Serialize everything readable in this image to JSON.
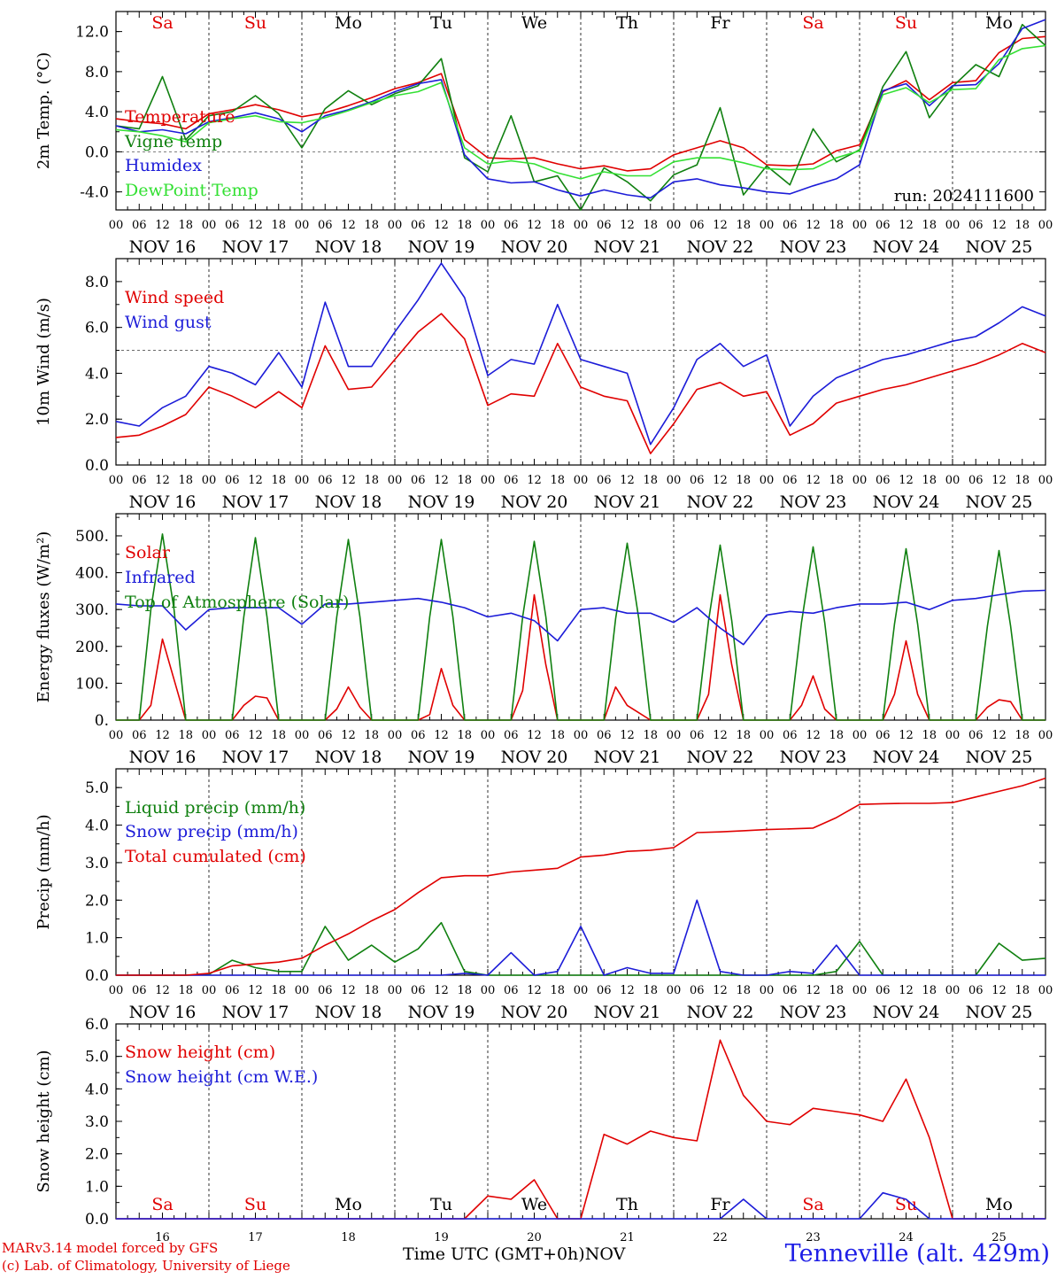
{
  "chart_data": [
    {
      "type": "line",
      "ylabel": "2m Temp. (°C)",
      "ylim": [
        -5.8,
        14.0
      ],
      "yticks": [
        -4.0,
        0.0,
        4.0,
        8.0,
        12.0
      ],
      "ytick_labels": [
        "-4.0",
        "0.0",
        "4.0",
        "8.0",
        "12.0"
      ],
      "reference_line": 0,
      "day_labels": [
        "Sa",
        "Su",
        "Mo",
        "Tu",
        "We",
        "Th",
        "Fr",
        "Sa",
        "Su",
        "Mo"
      ],
      "annotation": "run: 2024111600",
      "x_hours": [
        0,
        6,
        12,
        18,
        24,
        30,
        36,
        42,
        48,
        54,
        60,
        66,
        72,
        78,
        84,
        90,
        96,
        102,
        108,
        114,
        120,
        126,
        132,
        138,
        144,
        150,
        156,
        162,
        168,
        174,
        180,
        186,
        192,
        198,
        204,
        210,
        216,
        222,
        228,
        234,
        240
      ],
      "series": [
        {
          "name": "Temperature",
          "color": "#e00000",
          "values": [
            3.3,
            3.0,
            2.8,
            2.3,
            3.8,
            4.2,
            4.7,
            4.2,
            3.5,
            3.9,
            4.6,
            5.4,
            6.3,
            6.9,
            7.8,
            1.2,
            -0.6,
            -0.7,
            -0.6,
            -1.2,
            -1.7,
            -1.4,
            -1.9,
            -1.7,
            -0.3,
            0.4,
            1.1,
            0.4,
            -1.3,
            -1.4,
            -1.2,
            0.1,
            0.7,
            6.0,
            7.1,
            5.2,
            6.9,
            7.1,
            9.9,
            11.3,
            11.5
          ]
        },
        {
          "name": "Vigne temp",
          "color": "#108010",
          "values": [
            2.6,
            2.3,
            7.5,
            1.2,
            3.6,
            4.0,
            5.6,
            3.8,
            0.4,
            4.3,
            6.1,
            4.7,
            5.8,
            6.6,
            9.3,
            -0.6,
            -2.0,
            3.6,
            -3.0,
            -2.4,
            -5.8,
            -1.6,
            -3.0,
            -4.9,
            -2.3,
            -1.3,
            4.4,
            -4.3,
            -1.4,
            -3.3,
            2.3,
            -1.0,
            0.2,
            6.5,
            10.0,
            3.4,
            6.5,
            8.7,
            7.5,
            12.7,
            10.6
          ]
        },
        {
          "name": "Humidex",
          "color": "#1c1cd8",
          "values": [
            2.6,
            2.0,
            2.2,
            1.8,
            3.0,
            3.4,
            3.9,
            3.3,
            2.0,
            3.6,
            4.2,
            5.0,
            6.0,
            6.8,
            7.2,
            -0.3,
            -2.7,
            -3.1,
            -3.0,
            -3.8,
            -4.4,
            -3.8,
            -4.3,
            -4.6,
            -3.0,
            -2.7,
            -3.3,
            -3.6,
            -4.0,
            -4.2,
            -3.4,
            -2.7,
            -1.3,
            6.1,
            6.8,
            4.6,
            6.6,
            6.7,
            8.8,
            12.3,
            13.2
          ]
        },
        {
          "name": "DewPoint Temp",
          "color": "#33e033",
          "values": [
            2.2,
            2.0,
            1.6,
            1.0,
            2.9,
            3.3,
            3.6,
            3.0,
            2.9,
            3.4,
            4.1,
            4.9,
            5.6,
            6.0,
            6.9,
            0.4,
            -1.2,
            -0.9,
            -1.2,
            -2.1,
            -2.7,
            -2.0,
            -2.4,
            -2.4,
            -1.0,
            -0.6,
            -0.6,
            -1.1,
            -1.7,
            -1.8,
            -1.7,
            -0.6,
            0.1,
            5.7,
            6.4,
            4.9,
            6.2,
            6.3,
            9.2,
            10.3,
            10.6
          ]
        }
      ]
    },
    {
      "type": "line",
      "ylabel": "10m Wind (m/s)",
      "ylim": [
        0,
        9.0
      ],
      "yticks": [
        0.0,
        2.0,
        4.0,
        6.0,
        8.0
      ],
      "ytick_labels": [
        "0.0",
        "2.0",
        "4.0",
        "6.0",
        "8.0"
      ],
      "reference_line": 5,
      "x_hours": [
        0,
        6,
        12,
        18,
        24,
        30,
        36,
        42,
        48,
        54,
        60,
        66,
        72,
        78,
        84,
        90,
        96,
        102,
        108,
        114,
        120,
        126,
        132,
        138,
        144,
        150,
        156,
        162,
        168,
        174,
        180,
        186,
        192,
        198,
        204,
        210,
        216,
        222,
        228,
        234,
        240
      ],
      "series": [
        {
          "name": "Wind speed",
          "color": "#e00000",
          "values": [
            1.2,
            1.3,
            1.7,
            2.2,
            3.4,
            3.0,
            2.5,
            3.2,
            2.5,
            5.2,
            3.3,
            3.4,
            4.6,
            5.8,
            6.6,
            5.5,
            2.6,
            3.1,
            3.0,
            5.3,
            3.4,
            3.0,
            2.8,
            0.5,
            1.8,
            3.3,
            3.6,
            3.0,
            3.2,
            1.3,
            1.8,
            2.7,
            3.0,
            3.3,
            3.5,
            3.8,
            4.1,
            4.4,
            4.8,
            5.3,
            4.9
          ]
        },
        {
          "name": "Wind gust",
          "color": "#1c1cd8",
          "values": [
            1.9,
            1.7,
            2.5,
            3.0,
            4.3,
            4.0,
            3.5,
            4.9,
            3.4,
            7.1,
            4.3,
            4.3,
            5.8,
            7.2,
            8.8,
            7.3,
            3.9,
            4.6,
            4.4,
            7.0,
            4.6,
            4.3,
            4.0,
            0.9,
            2.5,
            4.6,
            5.3,
            4.3,
            4.8,
            1.7,
            3.0,
            3.8,
            4.2,
            4.6,
            4.8,
            5.1,
            5.4,
            5.6,
            6.2,
            6.9,
            6.5
          ]
        }
      ]
    },
    {
      "type": "line",
      "ylabel": "Energy fluxes (W/m²)",
      "ylim": [
        0,
        560
      ],
      "yticks": [
        0,
        100,
        200,
        300,
        400,
        500
      ],
      "ytick_labels": [
        "0.",
        "100.",
        "200.",
        "300.",
        "400.",
        "500."
      ],
      "x_hours": [
        0,
        6,
        9,
        12,
        15,
        18,
        24,
        30,
        33,
        36,
        39,
        42,
        48,
        54,
        57,
        60,
        63,
        66,
        72,
        78,
        81,
        84,
        87,
        90,
        96,
        102,
        105,
        108,
        111,
        114,
        120,
        126,
        129,
        132,
        135,
        138,
        144,
        150,
        153,
        156,
        159,
        162,
        168,
        174,
        177,
        180,
        183,
        186,
        192,
        198,
        201,
        204,
        207,
        210,
        216,
        222,
        225,
        228,
        231,
        234,
        240
      ],
      "series": [
        {
          "name": "Solar",
          "color": "#e00000",
          "values": [
            0,
            0,
            40,
            220,
            110,
            0,
            0,
            0,
            40,
            65,
            60,
            0,
            0,
            0,
            30,
            90,
            35,
            0,
            0,
            0,
            15,
            140,
            40,
            0,
            0,
            0,
            80,
            340,
            150,
            0,
            0,
            0,
            90,
            40,
            20,
            0,
            0,
            0,
            70,
            340,
            150,
            0,
            0,
            0,
            40,
            120,
            30,
            0,
            0,
            0,
            70,
            215,
            70,
            0,
            0,
            0,
            35,
            55,
            50,
            0,
            0
          ]
        },
        {
          "name": "Top of Atmosphere (Solar)",
          "color": "#108010",
          "values": [
            0,
            0,
            300,
            505,
            300,
            0,
            0,
            0,
            280,
            495,
            280,
            0,
            0,
            0,
            280,
            490,
            280,
            0,
            0,
            0,
            280,
            490,
            280,
            0,
            0,
            0,
            280,
            485,
            280,
            0,
            0,
            0,
            275,
            480,
            275,
            0,
            0,
            0,
            270,
            475,
            270,
            0,
            0,
            0,
            265,
            470,
            265,
            0,
            0,
            0,
            260,
            465,
            260,
            0,
            0,
            0,
            255,
            460,
            255,
            0,
            0
          ]
        }
      ],
      "series_hourly": [
        {
          "name": "Infrared",
          "color": "#1c1cd8",
          "x_hours": [
            0,
            6,
            12,
            18,
            24,
            30,
            36,
            42,
            48,
            54,
            60,
            66,
            72,
            78,
            84,
            90,
            96,
            102,
            108,
            114,
            120,
            126,
            132,
            138,
            144,
            150,
            156,
            162,
            168,
            174,
            180,
            186,
            192,
            198,
            204,
            210,
            216,
            222,
            228,
            234,
            240
          ],
          "values": [
            315,
            310,
            310,
            245,
            300,
            305,
            305,
            305,
            260,
            315,
            315,
            320,
            325,
            330,
            320,
            305,
            280,
            290,
            270,
            215,
            300,
            305,
            290,
            290,
            265,
            305,
            250,
            205,
            285,
            295,
            290,
            305,
            315,
            315,
            320,
            300,
            325,
            330,
            340,
            350,
            352
          ]
        }
      ]
    },
    {
      "type": "line",
      "ylabel": "Precip (mm/h)",
      "ylim": [
        0,
        5.5
      ],
      "yticks": [
        0.0,
        1.0,
        2.0,
        3.0,
        4.0,
        5.0
      ],
      "ytick_labels": [
        "0.0",
        "1.0",
        "2.0",
        "3.0",
        "4.0",
        "5.0"
      ],
      "x_hours": [
        0,
        6,
        12,
        18,
        24,
        30,
        36,
        42,
        48,
        54,
        60,
        66,
        72,
        78,
        84,
        90,
        96,
        102,
        108,
        114,
        120,
        126,
        132,
        138,
        144,
        150,
        156,
        162,
        168,
        174,
        180,
        186,
        192,
        198,
        204,
        210,
        216,
        222,
        228,
        234,
        240
      ],
      "series": [
        {
          "name": "Liquid precip (mm/h)",
          "color": "#108010",
          "values": [
            0,
            0,
            0,
            0,
            0.02,
            0.4,
            0.2,
            0.1,
            0.1,
            1.3,
            0.4,
            0.8,
            0.35,
            0.7,
            1.4,
            0.1,
            0,
            0,
            0,
            0,
            0,
            0,
            0,
            0,
            0,
            0,
            0,
            0,
            0,
            0,
            0,
            0.1,
            0.9,
            0,
            0,
            0,
            0,
            0,
            0.85,
            0.4,
            0.45
          ]
        },
        {
          "name": "Snow precip (mm/h)",
          "color": "#1c1cd8",
          "values": [
            0,
            0,
            0,
            0,
            0,
            0,
            0,
            0,
            0,
            0,
            0,
            0,
            0,
            0,
            0,
            0.05,
            0,
            0.6,
            0,
            0.1,
            1.3,
            0,
            0.2,
            0.05,
            0.05,
            2.0,
            0.1,
            0,
            0,
            0.1,
            0.05,
            0.8,
            0,
            0,
            0,
            0,
            0,
            0,
            0,
            0,
            0
          ]
        },
        {
          "name": "Total cumulated (cm)",
          "color": "#e00000",
          "values": [
            0,
            0,
            0,
            0,
            0.05,
            0.25,
            0.3,
            0.35,
            0.45,
            0.8,
            1.1,
            1.45,
            1.75,
            2.2,
            2.6,
            2.65,
            2.65,
            2.75,
            2.8,
            2.85,
            3.15,
            3.2,
            3.3,
            3.33,
            3.4,
            3.8,
            3.82,
            3.85,
            3.88,
            3.9,
            3.92,
            4.2,
            4.55,
            4.57,
            4.58,
            4.58,
            4.6,
            4.75,
            4.9,
            5.05,
            5.25
          ]
        }
      ]
    },
    {
      "type": "line",
      "ylabel": "Snow height (cm)",
      "ylim": [
        0,
        6.0
      ],
      "yticks": [
        0.0,
        1.0,
        2.0,
        3.0,
        4.0,
        5.0,
        6.0
      ],
      "ytick_labels": [
        "0.0",
        "1.0",
        "2.0",
        "3.0",
        "4.0",
        "5.0",
        "6.0"
      ],
      "day_labels": [
        "Sa",
        "Su",
        "Mo",
        "Tu",
        "We",
        "Th",
        "Fr",
        "Sa",
        "Su",
        "Mo"
      ],
      "date_labels": [
        "16",
        "17",
        "18",
        "19",
        "20",
        "21",
        "22",
        "23",
        "24",
        "25"
      ],
      "x_hours": [
        0,
        6,
        12,
        18,
        24,
        30,
        36,
        42,
        48,
        54,
        60,
        66,
        72,
        78,
        84,
        90,
        96,
        102,
        108,
        114,
        120,
        126,
        132,
        138,
        144,
        150,
        156,
        162,
        168,
        174,
        180,
        186,
        192,
        198,
        204,
        210,
        216,
        222,
        228,
        234,
        240
      ],
      "series": [
        {
          "name": "Snow height (cm)",
          "color": "#e00000",
          "values": [
            0,
            0,
            0,
            0,
            0,
            0,
            0,
            0,
            0,
            0,
            0,
            0,
            0,
            0,
            0,
            0,
            0.7,
            0.6,
            1.2,
            0,
            0,
            2.6,
            2.3,
            2.7,
            2.5,
            2.4,
            5.5,
            3.8,
            3.0,
            2.9,
            3.4,
            3.3,
            3.2,
            3.0,
            4.3,
            2.5,
            0,
            0,
            0,
            0,
            0
          ]
        },
        {
          "name": "Snow height (cm W.E.)",
          "color": "#1c1cd8",
          "values": [
            0,
            0,
            0,
            0,
            0,
            0,
            0,
            0,
            0,
            0,
            0,
            0,
            0,
            0,
            0,
            0,
            0,
            0,
            0,
            0,
            0,
            0,
            0,
            0,
            0,
            0,
            0,
            0.6,
            0,
            0,
            0,
            0,
            0,
            0.8,
            0.6,
            0,
            0,
            0,
            0,
            0,
            0
          ]
        }
      ]
    }
  ],
  "common": {
    "hour_tick_labels": [
      "00",
      "06",
      "12",
      "18"
    ],
    "final_hour_label": "00",
    "day_date_labels": [
      "NOV 16",
      "NOV 17",
      "NOV 18",
      "NOV 19",
      "NOV 20",
      "NOV 21",
      "NOV 22",
      "NOV 23",
      "NOV 24",
      "NOV 25"
    ],
    "weekend_color": "#e00000"
  },
  "footer": {
    "credit_line_1": "MARv3.14 model forced by GFS",
    "credit_line_2": "(c) Lab. of Climatology, University of Liege",
    "x_title": "Time UTC (GMT+0h)",
    "x_unit": "NOV",
    "station": "Tenneville (alt. 429m)"
  }
}
